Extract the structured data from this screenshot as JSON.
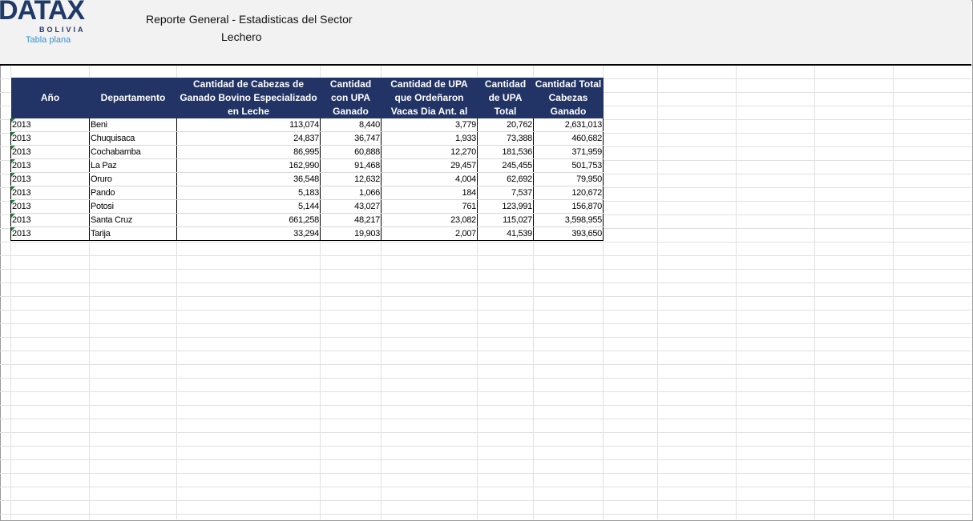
{
  "header": {
    "logo_text": "DATAX",
    "logo_sub": "BOLIVIA",
    "view_label": "Tabla plana",
    "title_line1": "Reporte General - Estadisticas del Sector",
    "title_line2": "Lechero"
  },
  "colors": {
    "header_fill": "#223466",
    "logo": "#1f3a68",
    "link": "#3b8fd0"
  },
  "table": {
    "columns": [
      "Año",
      "Departamento",
      "Cantidad de Cabezas de Ganado Bovino Especializado en Leche",
      "Cantidad con UPA Ganado",
      "Cantidad de UPA que Ordeñaron Vacas Dia Ant. al",
      "Cantidad de UPA Total",
      "Cantidad Total Cabezas Ganado"
    ],
    "rows": [
      [
        "2013",
        "Beni",
        "113,074",
        "8,440",
        "3,779",
        "20,762",
        "2,631,013"
      ],
      [
        "2013",
        "Chuquisaca",
        "24,837",
        "36,747",
        "1,933",
        "73,388",
        "460,682"
      ],
      [
        "2013",
        "Cochabamba",
        "86,995",
        "60,888",
        "12,270",
        "181,536",
        "371,959"
      ],
      [
        "2013",
        "La Paz",
        "162,990",
        "91,468",
        "29,457",
        "245,455",
        "501,753"
      ],
      [
        "2013",
        "Oruro",
        "36,548",
        "12,632",
        "4,004",
        "62,692",
        "79,950"
      ],
      [
        "2013",
        "Pando",
        "5,183",
        "1,066",
        "184",
        "7,537",
        "120,672"
      ],
      [
        "2013",
        "Potosi",
        "5,144",
        "43,027",
        "761",
        "123,991",
        "156,870"
      ],
      [
        "2013",
        "Santa Cruz",
        "661,258",
        "48,217",
        "23,082",
        "115,027",
        "3,598,955"
      ],
      [
        "2013",
        "Tarija",
        "33,294",
        "19,903",
        "2,007",
        "41,539",
        "393,650"
      ]
    ]
  }
}
